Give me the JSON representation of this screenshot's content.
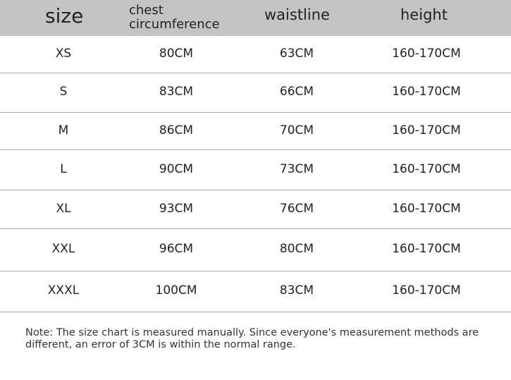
{
  "table": {
    "header": [
      "size",
      "chest circumference",
      "waistline",
      "height"
    ],
    "rows": [
      [
        "XS",
        "80CM",
        "63CM",
        "160-170CM"
      ],
      [
        "S",
        "83CM",
        "66CM",
        "160-170CM"
      ],
      [
        "M",
        "86CM",
        "70CM",
        "160-170CM"
      ],
      [
        "L",
        "90CM",
        "73CM",
        "160-170CM"
      ],
      [
        "XL",
        "93CM",
        "76CM",
        "160-170CM"
      ],
      [
        "XXL",
        "96CM",
        "80CM",
        "160-170CM"
      ],
      [
        "XXXL",
        "100CM",
        "83CM",
        "160-170CM"
      ]
    ]
  },
  "note": "Note: The size chart is measured manually. Since everyone's measurement methods are different, an error of 3CM is within the normal range."
}
